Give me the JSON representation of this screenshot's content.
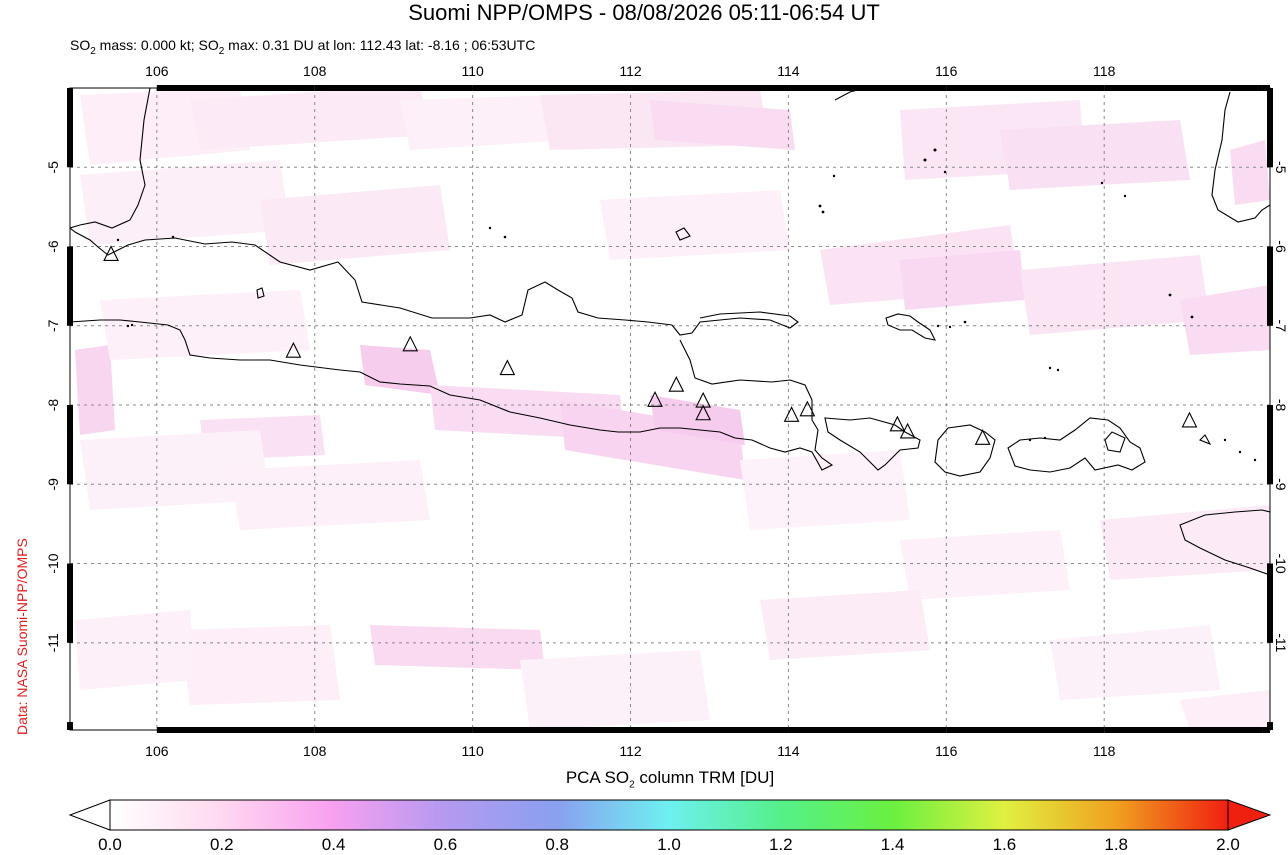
{
  "header": {
    "title": "Suomi NPP/OMPS - 08/08/2026 05:11-06:54 UT",
    "subtitle_prefix": "SO",
    "subtitle_sub1": "2",
    "subtitle_mid": " mass: 0.000 kt; SO",
    "subtitle_sub2": "2",
    "subtitle_rest": " max: 0.31 DU at lon: 112.43 lat: -8.16 ; 06:53UTC"
  },
  "credit": "Data: NASA Suomi-NPP/OMPS",
  "map": {
    "lon_range": [
      104.9,
      120.1
    ],
    "lat_range": [
      -12.1,
      -4.0
    ],
    "lon_ticks": [
      "106",
      "108",
      "110",
      "112",
      "114",
      "116",
      "118"
    ],
    "lat_ticks": [
      "-5",
      "-6",
      "-7",
      "-8",
      "-9",
      "-10",
      "-11"
    ],
    "gridlines": true
  },
  "volcanoes": [
    {
      "lon": 105.42,
      "lat": -6.1
    },
    {
      "lon": 107.73,
      "lat": -7.32
    },
    {
      "lon": 109.21,
      "lat": -7.24
    },
    {
      "lon": 110.44,
      "lat": -7.54
    },
    {
      "lon": 112.31,
      "lat": -7.94
    },
    {
      "lon": 112.58,
      "lat": -7.75
    },
    {
      "lon": 112.92,
      "lat": -7.95
    },
    {
      "lon": 112.92,
      "lat": -8.11
    },
    {
      "lon": 114.04,
      "lat": -8.13
    },
    {
      "lon": 114.24,
      "lat": -8.06
    },
    {
      "lon": 115.38,
      "lat": -8.25
    },
    {
      "lon": 115.51,
      "lat": -8.34
    },
    {
      "lon": 116.46,
      "lat": -8.42
    },
    {
      "lon": 119.08,
      "lat": -8.2
    }
  ],
  "colorbar": {
    "label_prefix": "PCA SO",
    "label_sub": "2",
    "label_suffix": " column TRM [DU]",
    "ticks": [
      "0.0",
      "0.2",
      "0.4",
      "0.6",
      "0.8",
      "1.0",
      "1.2",
      "1.4",
      "1.6",
      "1.8",
      "2.0"
    ],
    "colors": [
      "#ffffff",
      "#ffd8f0",
      "#f7a0f0",
      "#b49af0",
      "#8aa0f0",
      "#6ef0f0",
      "#55f08a",
      "#6af040",
      "#e0f040",
      "#f0a020",
      "#f02010"
    ]
  }
}
